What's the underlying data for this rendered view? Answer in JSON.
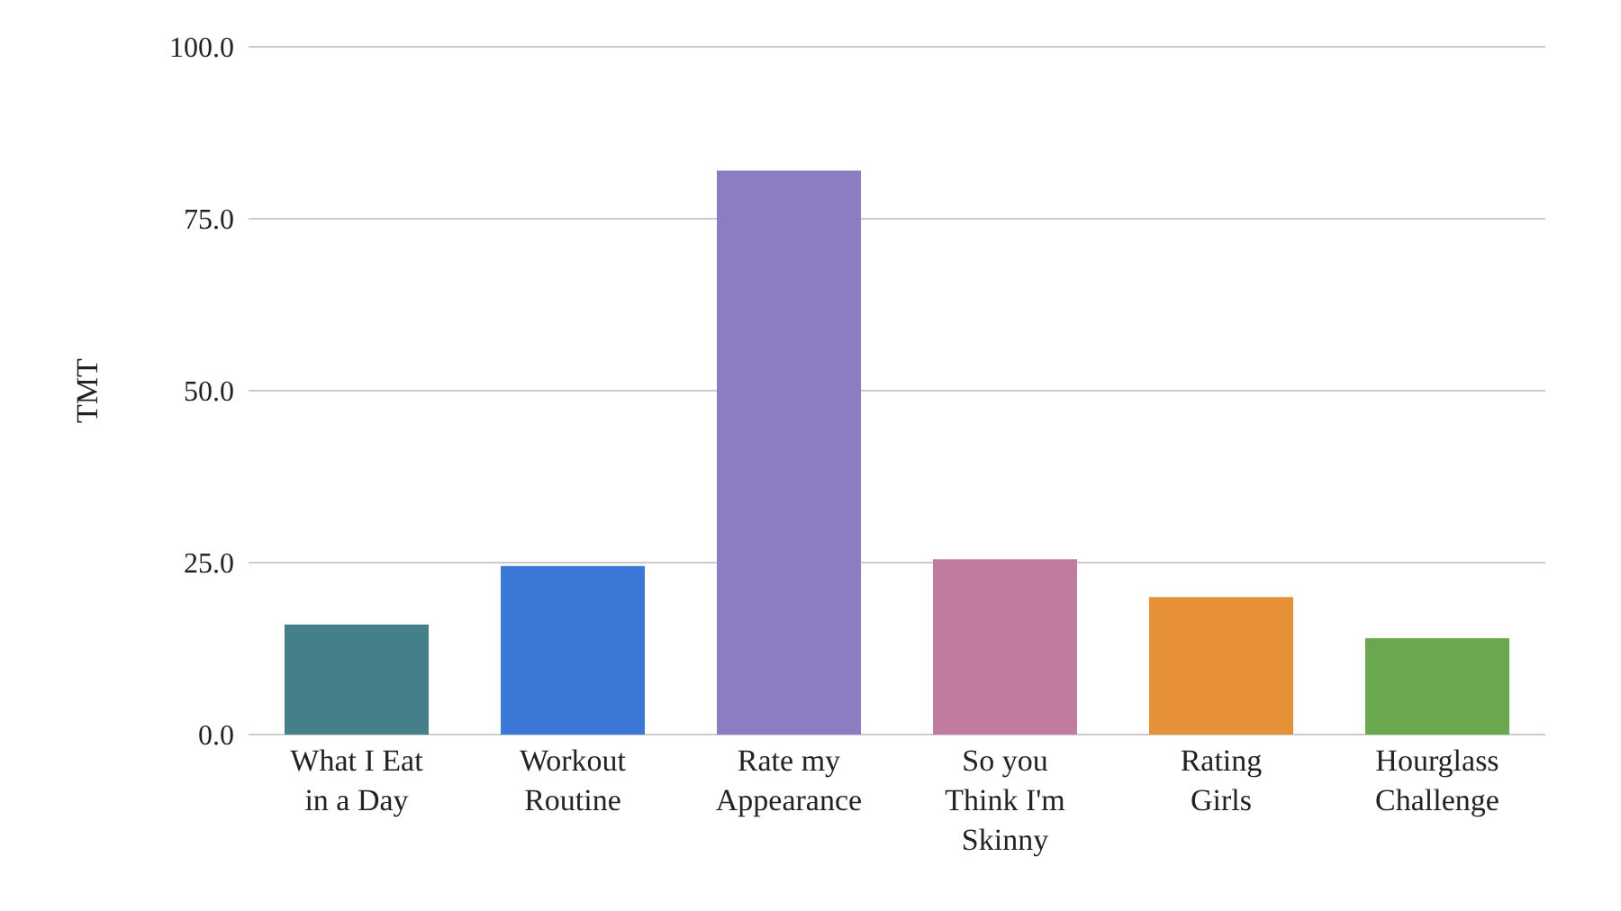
{
  "chart_data": {
    "type": "bar",
    "ylabel": "TMT",
    "categories": [
      "What I Eat in a Day",
      "Workout Routine",
      "Rate my Appearance",
      "So you Think I'm Skinny",
      "Rating Girls",
      "Hourglass Challenge"
    ],
    "values": [
      16,
      24.5,
      82,
      25.5,
      20,
      14
    ],
    "colors": [
      "#45808a",
      "#3c78d8",
      "#8e7cc3",
      "#c27ba0",
      "#e69138",
      "#6aa84f"
    ],
    "ylim": [
      0,
      100
    ],
    "yticks": [
      {
        "value": 0,
        "label": "0.0"
      },
      {
        "value": 25,
        "label": "25.0"
      },
      {
        "value": 50,
        "label": "50.0"
      },
      {
        "value": 75,
        "label": "75.0"
      },
      {
        "value": 100,
        "label": "100.0"
      }
    ],
    "grid": "y",
    "legend": false
  }
}
